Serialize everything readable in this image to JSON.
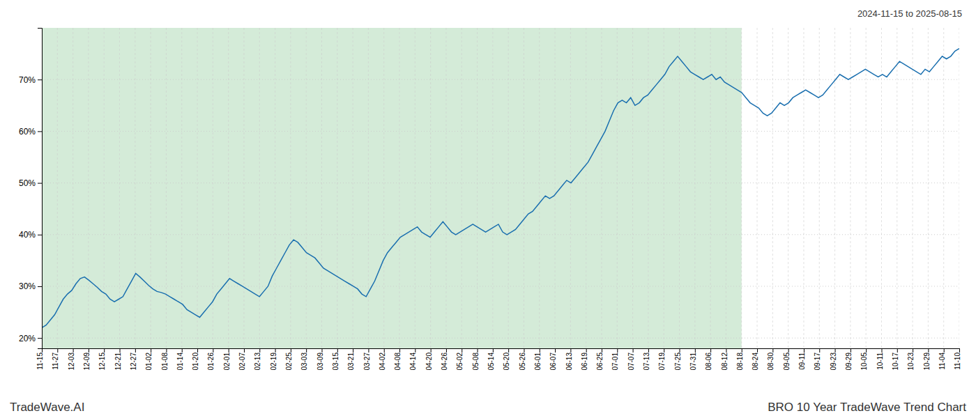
{
  "chart_data": {
    "type": "line",
    "title": "BRO 10 Year TradeWave Trend Chart",
    "subtitle": "2024-11-15 to 2025-08-15",
    "annotations": [
      "TradeWave.AI"
    ],
    "color": "#1a6faf",
    "grid": true,
    "xlim": [
      0,
      215
    ],
    "xticks": [
      {
        "value": 0,
        "label": "11-15"
      },
      {
        "value": 3.6441,
        "label": "11-27"
      },
      {
        "value": 7.2881,
        "label": "12-03"
      },
      {
        "value": 10.9322,
        "label": "12-09"
      },
      {
        "value": 14.5763,
        "label": "12-15"
      },
      {
        "value": 18.2203,
        "label": "12-21"
      },
      {
        "value": 21.8644,
        "label": "12-27"
      },
      {
        "value": 25.5085,
        "label": "01-02"
      },
      {
        "value": 29.1525,
        "label": "01-08"
      },
      {
        "value": 32.7966,
        "label": "01-14"
      },
      {
        "value": 36.4407,
        "label": "01-20"
      },
      {
        "value": 40.0847,
        "label": "01-26"
      },
      {
        "value": 43.7288,
        "label": "02-01"
      },
      {
        "value": 47.3729,
        "label": "02-07"
      },
      {
        "value": 51.0169,
        "label": "02-13"
      },
      {
        "value": 54.661,
        "label": "02-19"
      },
      {
        "value": 58.3051,
        "label": "02-25"
      },
      {
        "value": 61.9492,
        "label": "03-03"
      },
      {
        "value": 65.5932,
        "label": "03-09"
      },
      {
        "value": 69.2373,
        "label": "03-15"
      },
      {
        "value": 72.8814,
        "label": "03-21"
      },
      {
        "value": 76.5254,
        "label": "03-27"
      },
      {
        "value": 80.1695,
        "label": "04-02"
      },
      {
        "value": 83.8136,
        "label": "04-08"
      },
      {
        "value": 87.4576,
        "label": "04-14"
      },
      {
        "value": 91.1017,
        "label": "04-20"
      },
      {
        "value": 94.7458,
        "label": "04-26"
      },
      {
        "value": 98.3898,
        "label": "05-02"
      },
      {
        "value": 102.0339,
        "label": "05-08"
      },
      {
        "value": 105.678,
        "label": "05-14"
      },
      {
        "value": 109.322,
        "label": "05-20"
      },
      {
        "value": 112.9661,
        "label": "05-26"
      },
      {
        "value": 116.6102,
        "label": "06-01"
      },
      {
        "value": 120.2542,
        "label": "06-07"
      },
      {
        "value": 123.8983,
        "label": "06-13"
      },
      {
        "value": 127.5424,
        "label": "06-19"
      },
      {
        "value": 131.1864,
        "label": "06-25"
      },
      {
        "value": 134.8305,
        "label": "07-01"
      },
      {
        "value": 138.4746,
        "label": "07-07"
      },
      {
        "value": 142.1186,
        "label": "07-13"
      },
      {
        "value": 145.7627,
        "label": "07-19"
      },
      {
        "value": 149.4068,
        "label": "07-25"
      },
      {
        "value": 153.0508,
        "label": "07-31"
      },
      {
        "value": 156.6949,
        "label": "08-06"
      },
      {
        "value": 160.339,
        "label": "08-12"
      },
      {
        "value": 163.9831,
        "label": "08-18"
      },
      {
        "value": 167.6271,
        "label": "08-24"
      },
      {
        "value": 171.2712,
        "label": "08-30"
      },
      {
        "value": 174.9153,
        "label": "09-05"
      },
      {
        "value": 178.5593,
        "label": "09-11"
      },
      {
        "value": 182.2034,
        "label": "09-17"
      },
      {
        "value": 185.8475,
        "label": "09-23"
      },
      {
        "value": 189.4915,
        "label": "09-29"
      },
      {
        "value": 193.1356,
        "label": "10-05"
      },
      {
        "value": 196.7797,
        "label": "10-11"
      },
      {
        "value": 200.4237,
        "label": "10-17"
      },
      {
        "value": 204.0678,
        "label": "10-23"
      },
      {
        "value": 207.7119,
        "label": "10-29"
      },
      {
        "value": 211.3559,
        "label": "11-04"
      },
      {
        "value": 215,
        "label": "11-10"
      }
    ],
    "shaded": [
      0,
      163.9831
    ],
    "ylim": [
      18,
      80
    ],
    "yticks": [
      {
        "value": 20,
        "label": "20%"
      },
      {
        "value": 30,
        "label": "30%"
      },
      {
        "value": 40,
        "label": "40%"
      },
      {
        "value": 50,
        "label": "50%"
      },
      {
        "value": 60,
        "label": "60%"
      },
      {
        "value": 70,
        "label": "70%"
      }
    ],
    "values": [
      22.0,
      22.5,
      23.5,
      24.5,
      26.0,
      27.5,
      28.5,
      29.2,
      30.5,
      31.5,
      31.8,
      31.2,
      30.5,
      29.8,
      29.0,
      28.5,
      27.5,
      27.0,
      27.5,
      28.0,
      29.5,
      31.0,
      32.5,
      31.8,
      31.0,
      30.2,
      29.5,
      29.0,
      28.8,
      28.5,
      28.0,
      27.5,
      27.0,
      26.5,
      25.5,
      25.0,
      24.5,
      24.0,
      25.0,
      26.0,
      27.0,
      28.5,
      29.5,
      30.5,
      31.5,
      31.0,
      30.5,
      30.0,
      29.5,
      29.0,
      28.5,
      28.0,
      29.0,
      30.0,
      32.0,
      33.5,
      35.0,
      36.5,
      38.0,
      39.0,
      38.5,
      37.5,
      36.5,
      36.0,
      35.5,
      34.5,
      33.5,
      33.0,
      32.5,
      32.0,
      31.5,
      31.0,
      30.5,
      30.0,
      29.5,
      28.5,
      28.0,
      29.5,
      31.0,
      33.0,
      35.0,
      36.5,
      37.5,
      38.5,
      39.5,
      40.0,
      40.5,
      41.0,
      41.5,
      40.5,
      40.0,
      39.5,
      40.5,
      41.5,
      42.5,
      41.5,
      40.5,
      40.0,
      40.5,
      41.0,
      41.5,
      42.0,
      41.5,
      41.0,
      40.5,
      41.0,
      41.5,
      42.0,
      40.5,
      40.0,
      40.5,
      41.0,
      42.0,
      43.0,
      44.0,
      44.5,
      45.5,
      46.5,
      47.5,
      47.0,
      47.5,
      48.5,
      49.5,
      50.5,
      50.0,
      51.0,
      52.0,
      53.0,
      54.0,
      55.5,
      57.0,
      58.5,
      60.0,
      62.0,
      64.0,
      65.5,
      66.0,
      65.5,
      66.5,
      65.0,
      65.5,
      66.5,
      67.0,
      68.0,
      69.0,
      70.0,
      71.0,
      72.5,
      73.5,
      74.5,
      73.5,
      72.5,
      71.5,
      71.0,
      70.5,
      70.0,
      70.5,
      71.0,
      70.0,
      70.5,
      69.5,
      69.0,
      68.5,
      68.0,
      67.5,
      66.5,
      65.5,
      65.0,
      64.5,
      63.5,
      63.0,
      63.5,
      64.5,
      65.5,
      65.0,
      65.5,
      66.5,
      67.0,
      67.5,
      68.0,
      67.5,
      67.0,
      66.5,
      67.0,
      68.0,
      69.0,
      70.0,
      71.0,
      70.5,
      70.0,
      70.5,
      71.0,
      71.5,
      72.0,
      71.5,
      71.0,
      70.5,
      71.0,
      70.5,
      71.5,
      72.5,
      73.5,
      73.0,
      72.5,
      72.0,
      71.5,
      71.0,
      72.0,
      71.5,
      72.5,
      73.5,
      74.5,
      74.0,
      74.5,
      75.5,
      76.0
    ]
  }
}
